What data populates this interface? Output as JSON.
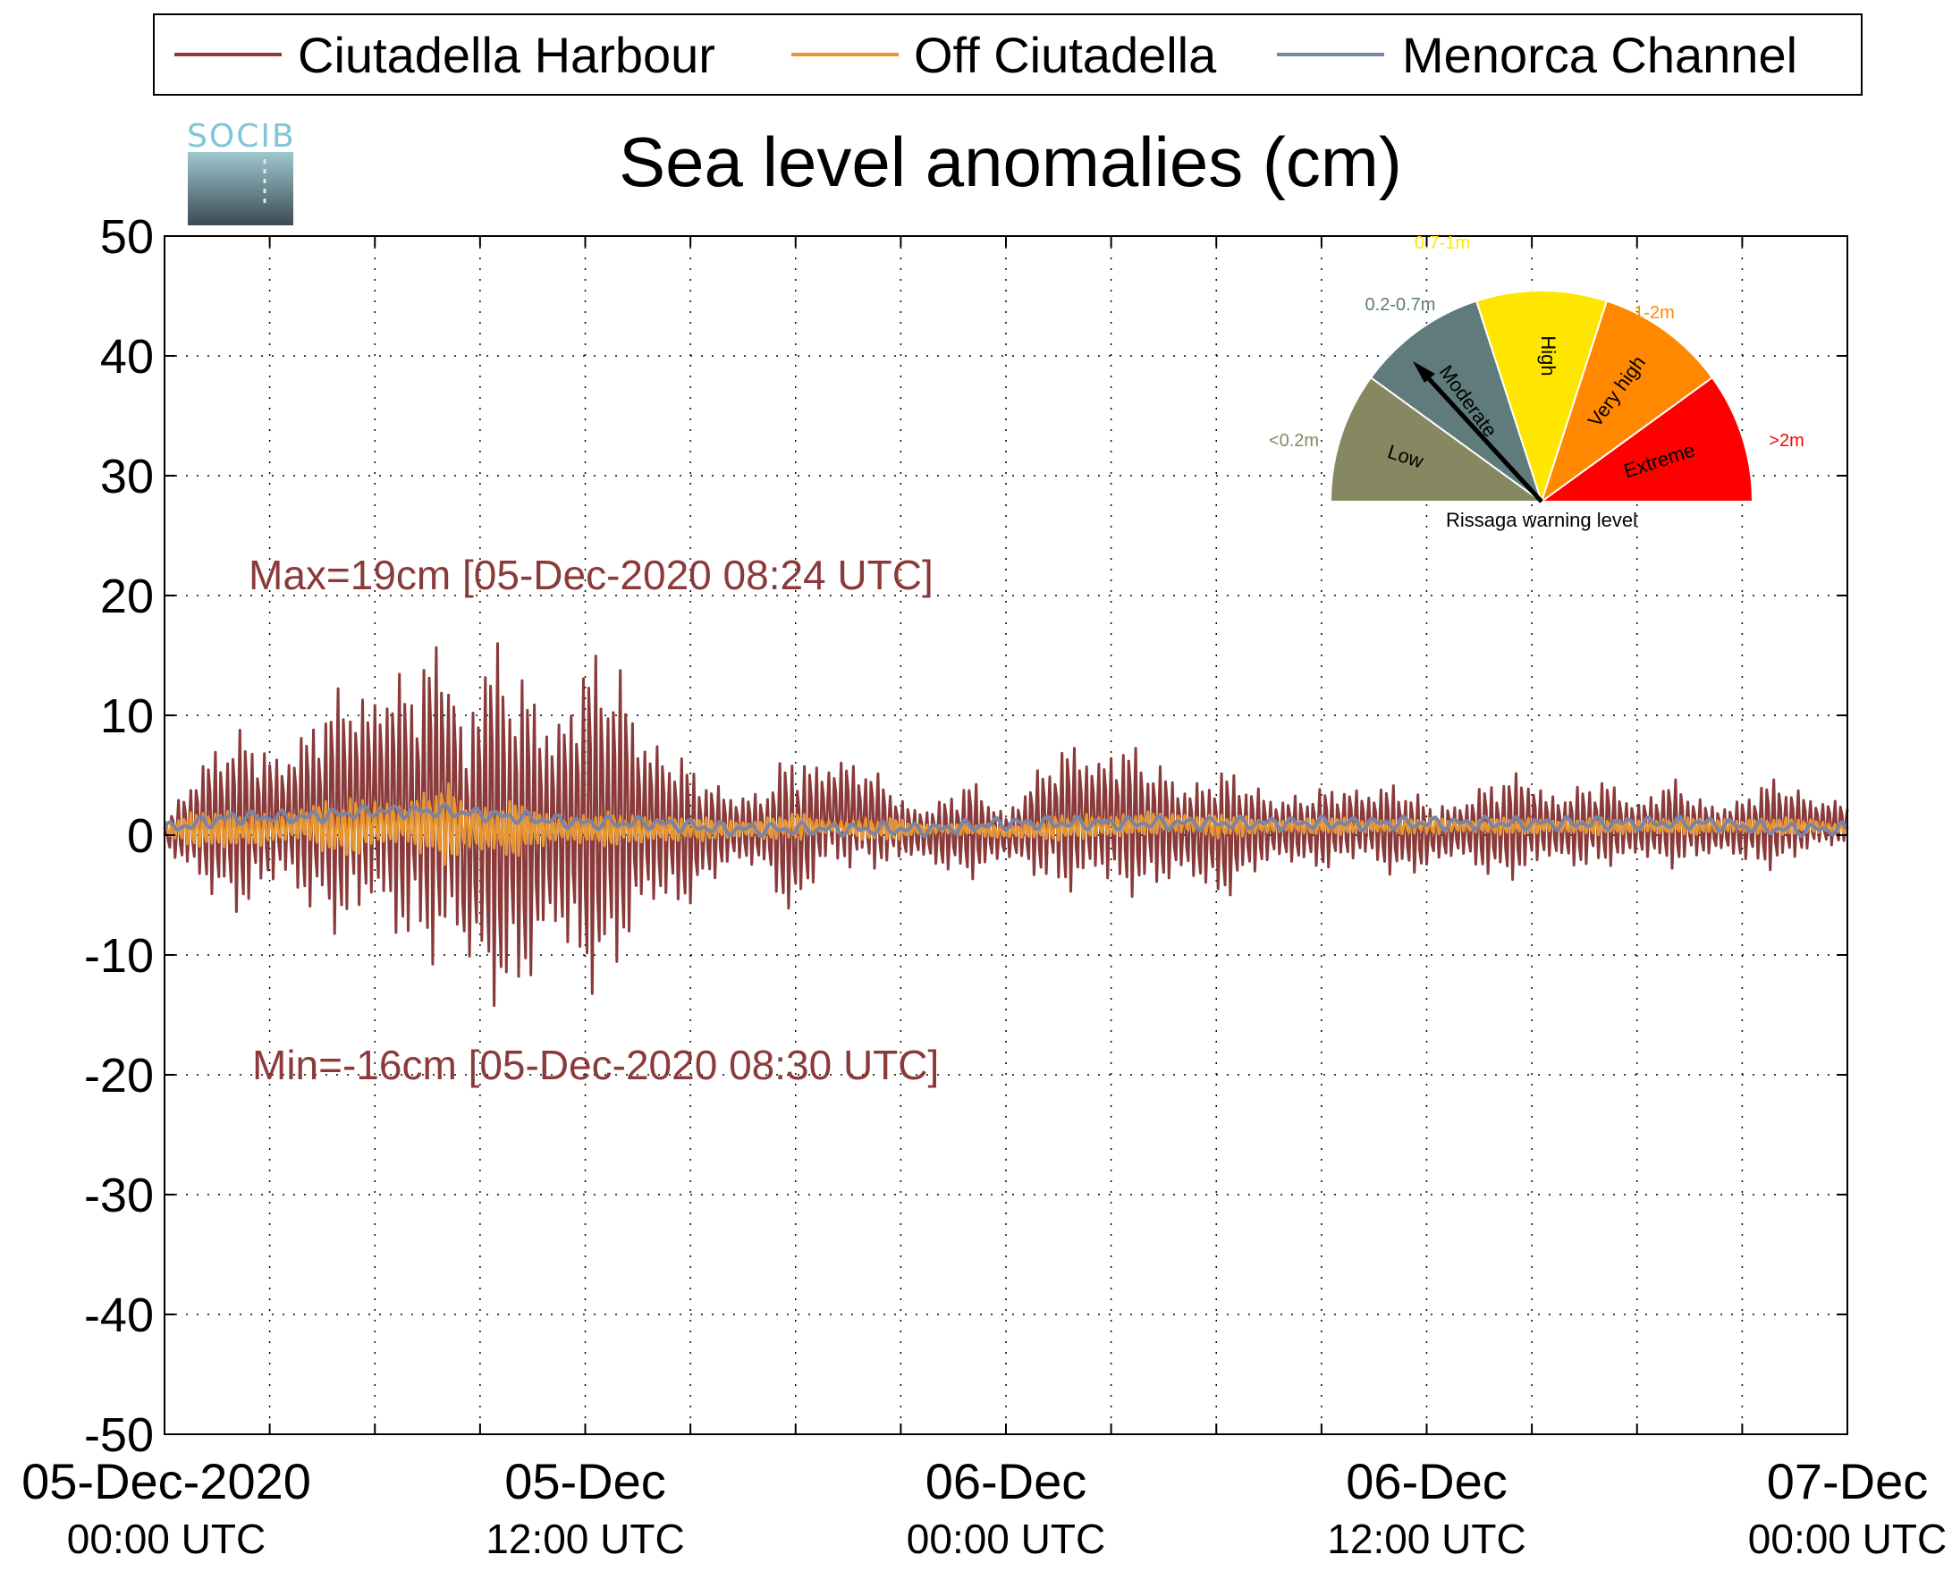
{
  "logo": {
    "text": "SOCIB"
  },
  "chart_data": {
    "type": "line",
    "title": "Sea level anomalies (cm)",
    "xlabel": "",
    "ylabel": "",
    "ylim": [
      -50,
      50
    ],
    "yticks": [
      50,
      40,
      30,
      20,
      10,
      0,
      -10,
      -20,
      -30,
      -40,
      -50
    ],
    "xlim": [
      "2020-12-05 00:00",
      "2020-12-07 00:00"
    ],
    "xtick_labels": [
      {
        "x": "2020-12-05 00:00",
        "line1": "05-Dec-2020",
        "line2": "00:00 UTC"
      },
      {
        "x": "2020-12-05 12:00",
        "line1": "05-Dec",
        "line2": "12:00 UTC"
      },
      {
        "x": "2020-12-06 00:00",
        "line1": "06-Dec",
        "line2": "00:00 UTC"
      },
      {
        "x": "2020-12-06 12:00",
        "line1": "06-Dec",
        "line2": "12:00 UTC"
      },
      {
        "x": "2020-12-07 00:00",
        "line1": "07-Dec",
        "line2": "00:00 UTC"
      }
    ],
    "grid": true,
    "legend_position": "top",
    "series": [
      {
        "name": "Ciutadella Harbour",
        "color": "#8b3a3a",
        "x": [
          "2020-12-05 00:00",
          "2020-12-05 01:00",
          "2020-12-05 02:00",
          "2020-12-05 03:00",
          "2020-12-05 04:00",
          "2020-12-05 05:00",
          "2020-12-05 06:00",
          "2020-12-05 07:00",
          "2020-12-05 08:00",
          "2020-12-05 08:24",
          "2020-12-05 08:30",
          "2020-12-05 09:00",
          "2020-12-05 10:00",
          "2020-12-05 11:00",
          "2020-12-05 12:00",
          "2020-12-05 13:00",
          "2020-12-05 14:00",
          "2020-12-05 15:00",
          "2020-12-05 16:00",
          "2020-12-05 17:00",
          "2020-12-05 18:00",
          "2020-12-05 19:00",
          "2020-12-05 20:00",
          "2020-12-05 21:00",
          "2020-12-05 22:00",
          "2020-12-05 23:00",
          "2020-12-06 00:00",
          "2020-12-06 01:00",
          "2020-12-06 02:00",
          "2020-12-06 03:00",
          "2020-12-06 04:00",
          "2020-12-06 05:00",
          "2020-12-06 06:00",
          "2020-12-06 07:00",
          "2020-12-06 08:00",
          "2020-12-06 09:00",
          "2020-12-06 10:00",
          "2020-12-06 11:00",
          "2020-12-06 12:00",
          "2020-12-06 13:00",
          "2020-12-06 14:00",
          "2020-12-06 15:00",
          "2020-12-06 16:00",
          "2020-12-06 17:00",
          "2020-12-06 18:00",
          "2020-12-06 19:00",
          "2020-12-06 20:00",
          "2020-12-06 21:00",
          "2020-12-06 22:00",
          "2020-12-06 23:00",
          "2020-12-07 00:00"
        ],
        "high": [
          1,
          8,
          9,
          9,
          10,
          13,
          17,
          14,
          19,
          19,
          12,
          19,
          15,
          14,
          16,
          16,
          10,
          6,
          5,
          4,
          8,
          8,
          6,
          4,
          3,
          5,
          3,
          6,
          9,
          9,
          7,
          6,
          6,
          5,
          4,
          4,
          5,
          5,
          3,
          4,
          5,
          6,
          4,
          5,
          4,
          5,
          3,
          4,
          5,
          4,
          3
        ],
        "low": [
          -1,
          -6,
          -7,
          -6,
          -7,
          -9,
          -11,
          -10,
          -13,
          -14,
          -16,
          -16,
          -15,
          -13,
          -14,
          -13,
          -8,
          -6,
          -4,
          -3,
          -8,
          -4,
          -3,
          -3,
          -3,
          -4,
          -3,
          -4,
          -6,
          -6,
          -5,
          -5,
          -6,
          -4,
          -3,
          -3,
          -3,
          -4,
          -3,
          -3,
          -4,
          -4,
          -3,
          -3,
          -3,
          -3,
          -2,
          -3,
          -3,
          -2,
          -1
        ]
      },
      {
        "name": "Off Ciutadella",
        "color": "#e8962e",
        "x": [
          "2020-12-05 00:00",
          "2020-12-05 01:00",
          "2020-12-05 02:00",
          "2020-12-05 03:00",
          "2020-12-05 04:00",
          "2020-12-05 05:00",
          "2020-12-05 06:00",
          "2020-12-05 07:00",
          "2020-12-05 08:00",
          "2020-12-05 09:00",
          "2020-12-05 10:00",
          "2020-12-05 11:00",
          "2020-12-05 12:00",
          "2020-12-05 13:00",
          "2020-12-05 14:00",
          "2020-12-05 15:00",
          "2020-12-05 16:00",
          "2020-12-05 17:00",
          "2020-12-05 18:00",
          "2020-12-05 19:00",
          "2020-12-05 20:00",
          "2020-12-05 21:00",
          "2020-12-05 22:00",
          "2020-12-05 23:00",
          "2020-12-06 00:00",
          "2020-12-06 01:00",
          "2020-12-06 02:00",
          "2020-12-06 03:00",
          "2020-12-06 04:00",
          "2020-12-06 05:00",
          "2020-12-06 06:00",
          "2020-12-06 07:00",
          "2020-12-06 08:00",
          "2020-12-06 09:00",
          "2020-12-06 10:00",
          "2020-12-06 11:00",
          "2020-12-06 12:00",
          "2020-12-06 13:00",
          "2020-12-06 14:00",
          "2020-12-06 15:00",
          "2020-12-06 16:00",
          "2020-12-06 17:00",
          "2020-12-06 18:00",
          "2020-12-06 19:00",
          "2020-12-06 20:00",
          "2020-12-06 21:00",
          "2020-12-06 22:00",
          "2020-12-06 23:00",
          "2020-12-07 00:00"
        ],
        "high": [
          1,
          3,
          2,
          2,
          3,
          3,
          4,
          3,
          5,
          3,
          3,
          2,
          2,
          2,
          2,
          1.5,
          1.5,
          1.5,
          2,
          1.5,
          1.5,
          1.5,
          1,
          1,
          1,
          1.5,
          2,
          2,
          2,
          2,
          2,
          1.5,
          1.5,
          1.5,
          1.5,
          1.5,
          1.5,
          1.5,
          1.5,
          1.5,
          1.5,
          1.5,
          1.5,
          1.5,
          1.5,
          1.5,
          1.5,
          1.5,
          1
        ],
        "low": [
          0,
          -2,
          -1,
          -1,
          -1,
          -2,
          -2,
          -1,
          -3,
          -2,
          -2,
          -1,
          -1,
          -1,
          -1,
          -0.5,
          -0.5,
          -0.5,
          -0.5,
          0,
          -0.5,
          -0.5,
          0,
          0,
          -0.5,
          -0.5,
          -0.5,
          -0.5,
          0,
          0,
          -0.5,
          0,
          0,
          0,
          0,
          0,
          0,
          0,
          0,
          0,
          0,
          0,
          0,
          0,
          0,
          0,
          0,
          0,
          0
        ]
      },
      {
        "name": "Menorca Channel",
        "color": "#7a84a4",
        "x": [
          "2020-12-05 00:00",
          "2020-12-05 02:00",
          "2020-12-05 04:00",
          "2020-12-05 06:00",
          "2020-12-05 08:00",
          "2020-12-05 10:00",
          "2020-12-05 12:00",
          "2020-12-05 14:00",
          "2020-12-05 16:00",
          "2020-12-05 18:00",
          "2020-12-05 20:00",
          "2020-12-05 22:00",
          "2020-12-06 00:00",
          "2020-12-06 02:00",
          "2020-12-06 04:00",
          "2020-12-06 06:00",
          "2020-12-06 08:00",
          "2020-12-06 10:00",
          "2020-12-06 12:00",
          "2020-12-06 14:00",
          "2020-12-06 16:00",
          "2020-12-06 18:00",
          "2020-12-06 20:00",
          "2020-12-06 22:00",
          "2020-12-07 00:00"
        ],
        "values": [
          0.5,
          1.5,
          1.5,
          2,
          2,
          1.5,
          1,
          1,
          0.5,
          0.5,
          0.5,
          0.5,
          1,
          1,
          1,
          1,
          1,
          1,
          1,
          1,
          1,
          1,
          1,
          0.5,
          0.5
        ]
      }
    ],
    "annotations": [
      {
        "text": "Max=19cm [05-Dec-2020 08:24 UTC]",
        "color": "#8b3a3a"
      },
      {
        "text": "Min=-16cm [05-Dec-2020 08:30 UTC]",
        "color": "#8b3a3a"
      }
    ]
  },
  "warning_gauge": {
    "caption": "Rissaga warning level",
    "current_level": "Moderate",
    "segments": [
      {
        "name": "Low",
        "range": "<0.2m",
        "color": "#858860"
      },
      {
        "name": "Moderate",
        "range": "0.2-0.7m",
        "color": "#5f7b7b"
      },
      {
        "name": "High",
        "range": "0.7-1m",
        "color": "#ffe600"
      },
      {
        "name": "Very high",
        "range": "1-2m",
        "color": "#ff8800"
      },
      {
        "name": "Extreme",
        "range": ">2m",
        "color": "#ff0000"
      }
    ]
  }
}
